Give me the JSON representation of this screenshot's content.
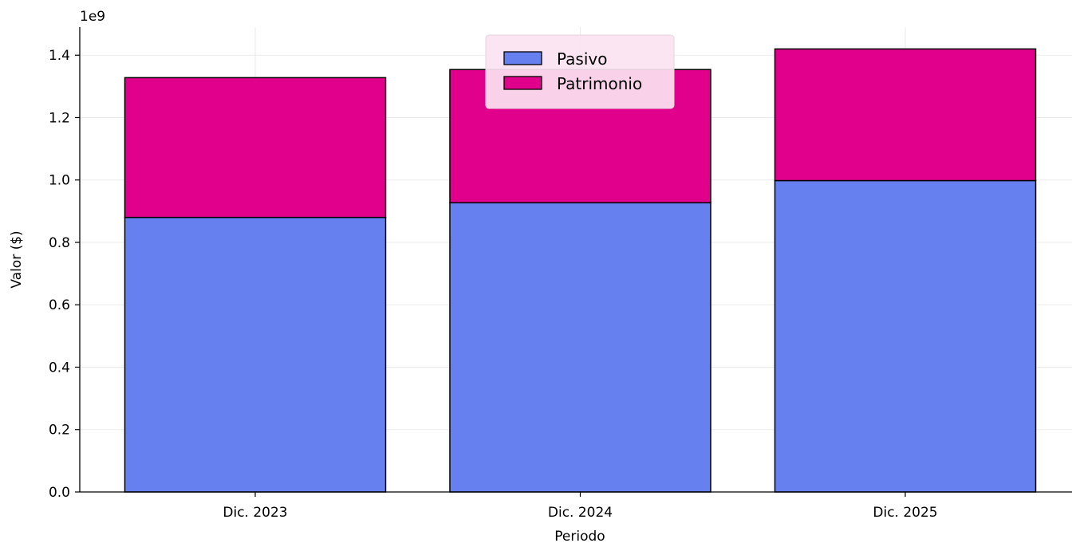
{
  "colors": {
    "background": "#ffffff",
    "grid": "#ebebeb",
    "axis": "#000000",
    "bar_edge": "#000000",
    "legend_bg": "#fbe3f1",
    "legend_border": "#e6d3de"
  },
  "chart_data": {
    "type": "bar",
    "stacked": true,
    "categories": [
      "Dic. 2023",
      "Dic. 2024",
      "Dic. 2025"
    ],
    "series": [
      {
        "name": "Pasivo",
        "color": "#6680f0",
        "values": [
          880000000,
          927000000,
          998000000
        ]
      },
      {
        "name": "Patrimonio",
        "color": "#e0008c",
        "values": [
          448000000,
          427000000,
          422000000
        ]
      }
    ],
    "xlabel": "Periodo",
    "ylabel": "Valor ($)",
    "y_offset_label": "1e9",
    "ylim": [
      0,
      1490000000
    ],
    "y_ticks": [
      0,
      200000000,
      400000000,
      600000000,
      800000000,
      1000000000,
      1200000000,
      1400000000
    ],
    "y_tick_labels": [
      "0.0",
      "0.2",
      "0.4",
      "0.6",
      "0.8",
      "1.0",
      "1.2",
      "1.4"
    ],
    "grid": true,
    "legend_position": "top-center"
  }
}
